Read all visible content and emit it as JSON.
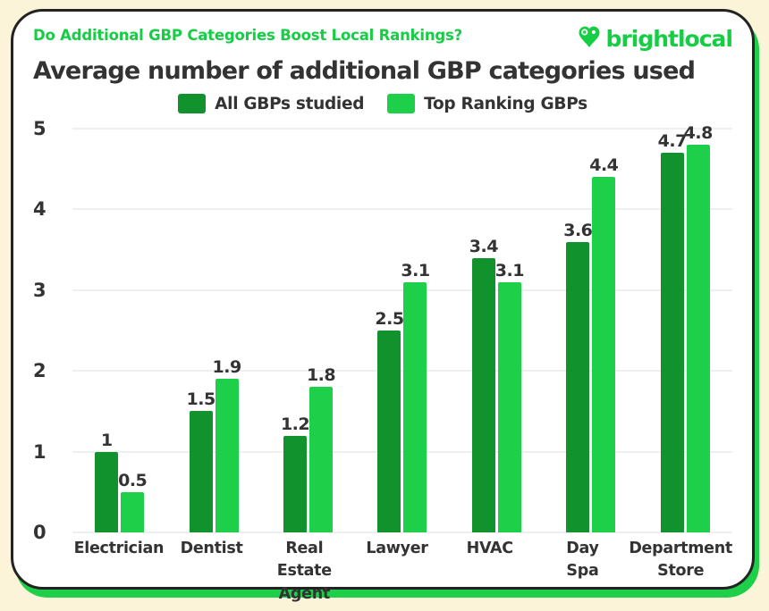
{
  "header": {
    "kicker": "Do Additional GBP Categories Boost Local Rankings?",
    "logo_text": "brightlocal"
  },
  "colors": {
    "background": "#fcf4d8",
    "card": "#ffffff",
    "card_border": "#232323",
    "card_shadow_green": "#1dcf49",
    "kicker_green": "#15ce44",
    "dark_green": "#12922d",
    "light_green": "#1dcf49",
    "text_dark": "#333333",
    "gridline": "#efefef"
  },
  "chart_data": {
    "type": "bar",
    "title": "Average number of additional GBP categories used",
    "categories": [
      "Electrician",
      "Dentist",
      "Real Estate Agent",
      "Lawyer",
      "HVAC",
      "Day Spa",
      "Department Store"
    ],
    "category_display_lines": [
      [
        "Electrician"
      ],
      [
        "Dentist"
      ],
      [
        "Real Estate",
        "Agent"
      ],
      [
        "Lawyer"
      ],
      [
        "HVAC"
      ],
      [
        "Day",
        "Spa"
      ],
      [
        "Department",
        "Store"
      ]
    ],
    "series": [
      {
        "name": "All GBPs studied",
        "color": "#12922d",
        "values": [
          1,
          1.5,
          1.2,
          2.5,
          3.4,
          3.6,
          4.7
        ]
      },
      {
        "name": "Top Ranking GBPs",
        "color": "#1dcf49",
        "values": [
          0.5,
          1.9,
          1.8,
          3.1,
          3.1,
          4.4,
          4.8
        ]
      }
    ],
    "xlabel": "",
    "ylabel": "",
    "ylim": [
      0,
      5
    ],
    "yticks": [
      0,
      1,
      2,
      3,
      4,
      5
    ],
    "grid": true,
    "legend_position": "top-center",
    "value_labels": true
  }
}
